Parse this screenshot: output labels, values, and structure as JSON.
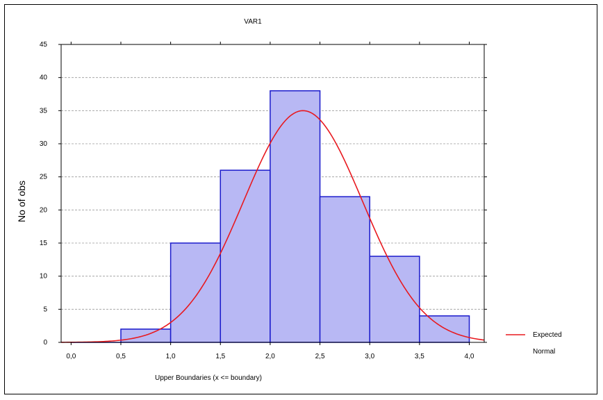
{
  "chart_data": {
    "type": "bar",
    "title": "VAR1",
    "xlabel": "Upper Boundaries (x <= boundary)",
    "ylabel": "No of obs",
    "bins": [
      {
        "from": 0.0,
        "to": 0.5,
        "count": 0
      },
      {
        "from": 0.5,
        "to": 1.0,
        "count": 2
      },
      {
        "from": 1.0,
        "to": 1.5,
        "count": 15
      },
      {
        "from": 1.5,
        "to": 2.0,
        "count": 26
      },
      {
        "from": 2.0,
        "to": 2.5,
        "count": 38
      },
      {
        "from": 2.5,
        "to": 3.0,
        "count": 22
      },
      {
        "from": 3.0,
        "to": 3.5,
        "count": 13
      },
      {
        "from": 3.5,
        "to": 4.0,
        "count": 4
      }
    ],
    "xticks": [
      "0,0",
      "0,5",
      "1,0",
      "1,5",
      "2,0",
      "2,5",
      "3,0",
      "3,5",
      "4,0"
    ],
    "yticks": [
      0,
      5,
      10,
      15,
      20,
      25,
      30,
      35,
      40,
      45
    ],
    "xlim": [
      -0.1,
      4.15
    ],
    "ylim": [
      0,
      45
    ],
    "grid": true,
    "expected_normal": {
      "mean": 2.33,
      "sd": 0.6,
      "peak": 35
    },
    "legend": {
      "position": "right",
      "entries": [
        {
          "line1": "Expected",
          "line2": "Normal",
          "color": "#e8191f"
        }
      ]
    },
    "colors": {
      "bar_fill": "#b8b8f4",
      "bar_edge": "#1a1acc",
      "curve": "#e8191f",
      "grid": "#9a9a9a"
    }
  }
}
